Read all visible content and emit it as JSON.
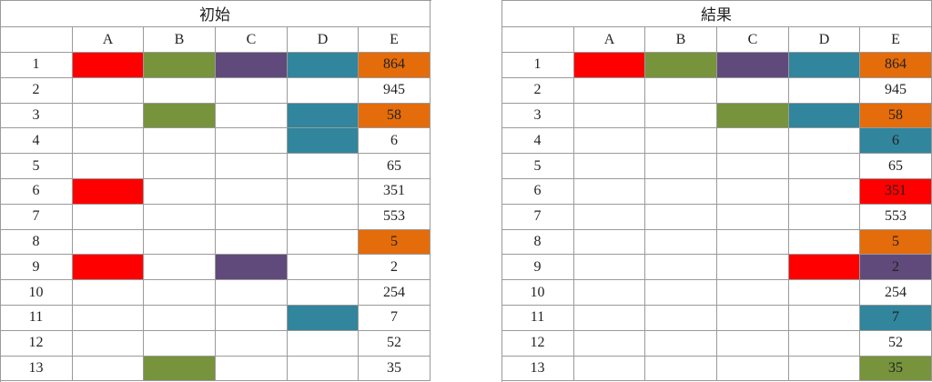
{
  "tables": [
    {
      "title": "初始",
      "columns": [
        "A",
        "B",
        "C",
        "D",
        "E"
      ],
      "rows": [
        {
          "label": "1",
          "cells": [
            "#ff0000",
            "#77933c",
            "#604a7b",
            "#31859c"
          ],
          "value": "864",
          "value_color": "#e46c0a"
        },
        {
          "label": "2",
          "cells": [
            null,
            null,
            null,
            null
          ],
          "value": "945",
          "value_color": null
        },
        {
          "label": "3",
          "cells": [
            null,
            "#77933c",
            null,
            "#31859c"
          ],
          "value": "58",
          "value_color": "#e46c0a"
        },
        {
          "label": "4",
          "cells": [
            null,
            null,
            null,
            "#31859c"
          ],
          "value": "6",
          "value_color": null
        },
        {
          "label": "5",
          "cells": [
            null,
            null,
            null,
            null
          ],
          "value": "65",
          "value_color": null
        },
        {
          "label": "6",
          "cells": [
            "#ff0000",
            null,
            null,
            null
          ],
          "value": "351",
          "value_color": null
        },
        {
          "label": "7",
          "cells": [
            null,
            null,
            null,
            null
          ],
          "value": "553",
          "value_color": null
        },
        {
          "label": "8",
          "cells": [
            null,
            null,
            null,
            null
          ],
          "value": "5",
          "value_color": "#e46c0a"
        },
        {
          "label": "9",
          "cells": [
            "#ff0000",
            null,
            "#604a7b",
            null
          ],
          "value": "2",
          "value_color": null
        },
        {
          "label": "10",
          "cells": [
            null,
            null,
            null,
            null
          ],
          "value": "254",
          "value_color": null
        },
        {
          "label": "11",
          "cells": [
            null,
            null,
            null,
            "#31859c"
          ],
          "value": "7",
          "value_color": null
        },
        {
          "label": "12",
          "cells": [
            null,
            null,
            null,
            null
          ],
          "value": "52",
          "value_color": null
        },
        {
          "label": "13",
          "cells": [
            null,
            "#77933c",
            null,
            null
          ],
          "value": "35",
          "value_color": null
        }
      ]
    },
    {
      "title": "結果",
      "columns": [
        "A",
        "B",
        "C",
        "D",
        "E"
      ],
      "rows": [
        {
          "label": "1",
          "cells": [
            "#ff0000",
            "#77933c",
            "#604a7b",
            "#31859c"
          ],
          "value": "864",
          "value_color": "#e46c0a"
        },
        {
          "label": "2",
          "cells": [
            null,
            null,
            null,
            null
          ],
          "value": "945",
          "value_color": null
        },
        {
          "label": "3",
          "cells": [
            null,
            null,
            "#77933c",
            "#31859c"
          ],
          "value": "58",
          "value_color": "#e46c0a"
        },
        {
          "label": "4",
          "cells": [
            null,
            null,
            null,
            null
          ],
          "value": "6",
          "value_color": "#31859c"
        },
        {
          "label": "5",
          "cells": [
            null,
            null,
            null,
            null
          ],
          "value": "65",
          "value_color": null
        },
        {
          "label": "6",
          "cells": [
            null,
            null,
            null,
            null
          ],
          "value": "351",
          "value_color": "#ff0000"
        },
        {
          "label": "7",
          "cells": [
            null,
            null,
            null,
            null
          ],
          "value": "553",
          "value_color": null
        },
        {
          "label": "8",
          "cells": [
            null,
            null,
            null,
            null
          ],
          "value": "5",
          "value_color": "#e46c0a"
        },
        {
          "label": "9",
          "cells": [
            null,
            null,
            null,
            "#ff0000"
          ],
          "value": "2",
          "value_color": "#604a7b"
        },
        {
          "label": "10",
          "cells": [
            null,
            null,
            null,
            null
          ],
          "value": "254",
          "value_color": null
        },
        {
          "label": "11",
          "cells": [
            null,
            null,
            null,
            null
          ],
          "value": "7",
          "value_color": "#31859c"
        },
        {
          "label": "12",
          "cells": [
            null,
            null,
            null,
            null
          ],
          "value": "52",
          "value_color": null
        },
        {
          "label": "13",
          "cells": [
            null,
            null,
            null,
            null
          ],
          "value": "35",
          "value_color": "#77933c"
        }
      ]
    }
  ]
}
